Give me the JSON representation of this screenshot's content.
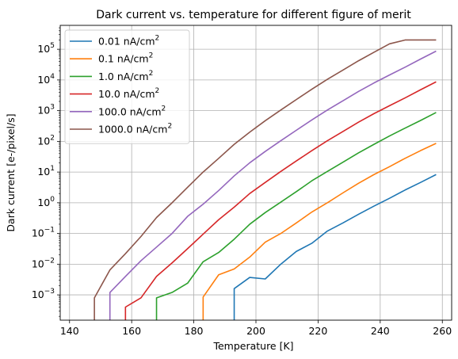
{
  "chart_data": {
    "type": "line",
    "title": "Dark current vs. temperature for different figure of merit",
    "xlabel": "Temperature [K]",
    "ylabel": "Dark current [e-/pixel/s]",
    "xlim": [
      137,
      263
    ],
    "ylim": [
      0.00015,
      600000
    ],
    "yscale": "log",
    "grid": true,
    "legend_position": "top-left",
    "x_ticks": [
      140,
      160,
      180,
      200,
      220,
      240,
      260
    ],
    "y_ticks": [
      {
        "value": 0.001,
        "base": "10",
        "exp": "−3"
      },
      {
        "value": 0.01,
        "base": "10",
        "exp": "−2"
      },
      {
        "value": 0.1,
        "base": "10",
        "exp": "−1"
      },
      {
        "value": 1,
        "base": "10",
        "exp": "0"
      },
      {
        "value": 10,
        "base": "10",
        "exp": "1"
      },
      {
        "value": 100,
        "base": "10",
        "exp": "2"
      },
      {
        "value": 1000,
        "base": "10",
        "exp": "3"
      },
      {
        "value": 10000,
        "base": "10",
        "exp": "4"
      },
      {
        "value": 100000,
        "base": "10",
        "exp": "5"
      }
    ],
    "series": [
      {
        "name": "0.01 nA/cm",
        "unit_exp": "2",
        "color": "#1f77b4",
        "points": [
          [
            193,
            0.00015
          ],
          [
            193,
            0.0016
          ],
          [
            198,
            0.0037
          ],
          [
            203,
            0.0033
          ],
          [
            208,
            0.01
          ],
          [
            213,
            0.026
          ],
          [
            218,
            0.048
          ],
          [
            223,
            0.12
          ],
          [
            228,
            0.22
          ],
          [
            233,
            0.42
          ],
          [
            238,
            0.78
          ],
          [
            243,
            1.4
          ],
          [
            248,
            2.6
          ],
          [
            253,
            4.6
          ],
          [
            258,
            8.3
          ]
        ]
      },
      {
        "name": "0.1 nA/cm",
        "unit_exp": "2",
        "color": "#ff7f0e",
        "points": [
          [
            183,
            0.00015
          ],
          [
            183,
            0.00085
          ],
          [
            188,
            0.0045
          ],
          [
            193,
            0.007
          ],
          [
            198,
            0.017
          ],
          [
            203,
            0.052
          ],
          [
            208,
            0.1
          ],
          [
            213,
            0.22
          ],
          [
            218,
            0.5
          ],
          [
            223,
            1.0
          ],
          [
            228,
            2.1
          ],
          [
            233,
            4.3
          ],
          [
            238,
            8.3
          ],
          [
            243,
            15
          ],
          [
            248,
            28
          ],
          [
            253,
            50
          ],
          [
            258,
            86
          ]
        ]
      },
      {
        "name": "1.0 nA/cm",
        "unit_exp": "2",
        "color": "#2ca02c",
        "points": [
          [
            168,
            0.00015
          ],
          [
            168,
            0.0008
          ],
          [
            173,
            0.0012
          ],
          [
            178,
            0.0024
          ],
          [
            183,
            0.012
          ],
          [
            188,
            0.024
          ],
          [
            193,
            0.065
          ],
          [
            198,
            0.2
          ],
          [
            203,
            0.48
          ],
          [
            208,
            1.05
          ],
          [
            213,
            2.3
          ],
          [
            218,
            5.2
          ],
          [
            223,
            10.5
          ],
          [
            228,
            21
          ],
          [
            233,
            42
          ],
          [
            238,
            80
          ],
          [
            243,
            150
          ],
          [
            248,
            270
          ],
          [
            253,
            480
          ],
          [
            258,
            870
          ]
        ]
      },
      {
        "name": "10.0 nA/cm",
        "unit_exp": "2",
        "color": "#d62728",
        "points": [
          [
            158,
            0.00015
          ],
          [
            158,
            0.0004
          ],
          [
            163,
            0.0008
          ],
          [
            168,
            0.004
          ],
          [
            173,
            0.011
          ],
          [
            178,
            0.032
          ],
          [
            183,
            0.095
          ],
          [
            188,
            0.28
          ],
          [
            193,
            0.72
          ],
          [
            198,
            2.0
          ],
          [
            203,
            4.6
          ],
          [
            208,
            10.5
          ],
          [
            213,
            23
          ],
          [
            218,
            50
          ],
          [
            223,
            105
          ],
          [
            228,
            210
          ],
          [
            233,
            420
          ],
          [
            238,
            800
          ],
          [
            243,
            1450
          ],
          [
            248,
            2600
          ],
          [
            253,
            4800
          ],
          [
            258,
            8700
          ]
        ]
      },
      {
        "name": "100.0 nA/cm",
        "unit_exp": "2",
        "color": "#9467bd",
        "points": [
          [
            153,
            0.00015
          ],
          [
            153,
            0.0012
          ],
          [
            158,
            0.004
          ],
          [
            163,
            0.013
          ],
          [
            168,
            0.036
          ],
          [
            173,
            0.1
          ],
          [
            178,
            0.36
          ],
          [
            183,
            0.9
          ],
          [
            188,
            2.5
          ],
          [
            193,
            7.5
          ],
          [
            198,
            20
          ],
          [
            203,
            47
          ],
          [
            208,
            105
          ],
          [
            213,
            230
          ],
          [
            218,
            500
          ],
          [
            223,
            1050
          ],
          [
            228,
            2100
          ],
          [
            233,
            4200
          ],
          [
            238,
            8000
          ],
          [
            243,
            14500
          ],
          [
            248,
            26000
          ],
          [
            253,
            48000
          ],
          [
            258,
            87000
          ]
        ]
      },
      {
        "name": "1000.0 nA/cm",
        "unit_exp": "2",
        "color": "#8c564b",
        "points": [
          [
            148,
            0.00015
          ],
          [
            148,
            0.0008
          ],
          [
            153,
            0.0065
          ],
          [
            158,
            0.022
          ],
          [
            163,
            0.08
          ],
          [
            168,
            0.33
          ],
          [
            173,
            1.0
          ],
          [
            178,
            3.2
          ],
          [
            183,
            10
          ],
          [
            188,
            28
          ],
          [
            193,
            80
          ],
          [
            198,
            200
          ],
          [
            203,
            470
          ],
          [
            208,
            1050
          ],
          [
            213,
            2300
          ],
          [
            218,
            5000
          ],
          [
            223,
            10500
          ],
          [
            228,
            21000
          ],
          [
            233,
            42000
          ],
          [
            238,
            80000
          ],
          [
            243,
            150000
          ],
          [
            248,
            200000
          ],
          [
            253,
            200000
          ],
          [
            258,
            200000
          ]
        ]
      }
    ]
  }
}
